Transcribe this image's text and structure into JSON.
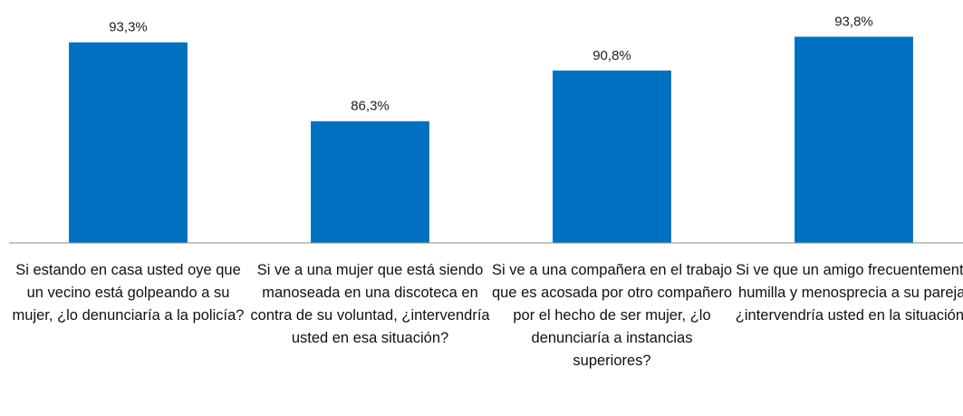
{
  "chart_data": {
    "type": "bar",
    "categories": [
      "Si estando en casa usted oye que un vecino está golpeando a su mujer, ¿lo denunciaría a la policía?",
      "Si ve a una mujer que está siendo manoseada en una discoteca en contra de su voluntad, ¿intervendría usted en esa situación?",
      "Si ve a una compañera en el trabajo que es acosada por otro compañero por el hecho de ser mujer, ¿lo denunciaría a instancias superiores?",
      "Si ve que un amigo frecuentemente humilla y menosprecia a su pareja, ¿intervendría usted en la situación?"
    ],
    "values": [
      93.3,
      86.3,
      90.8,
      93.8
    ],
    "value_labels": [
      "93,3%",
      "86,3%",
      "90,8%",
      "93,8%"
    ],
    "color": "#0070c0",
    "ylim": [
      75.5,
      95
    ]
  }
}
